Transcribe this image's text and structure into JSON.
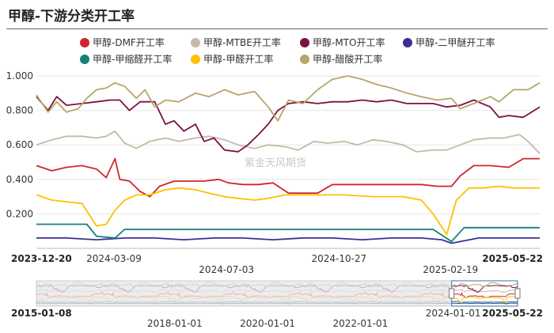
{
  "page": {
    "title": "甲醇-下游分类开工率"
  },
  "watermark": "紫金天风期货",
  "chart_data": {
    "type": "line",
    "ylim": [
      0.0,
      1.0
    ],
    "y_ticks": [
      "1.000",
      "0.800",
      "0.600",
      "0.400",
      "0.200"
    ],
    "y_tick_values": [
      1.0,
      0.8,
      0.6,
      0.4,
      0.2
    ],
    "x_range": [
      "2023-12-20",
      "2025-05-22"
    ],
    "x_ticks": [
      {
        "label": "2023-12-20",
        "date": "2023-12-20",
        "bold": true,
        "row": 1
      },
      {
        "label": "2024-03-09",
        "date": "2024-03-09",
        "bold": false,
        "row": 1
      },
      {
        "label": "2024-07-03",
        "date": "2024-07-03",
        "bold": false,
        "row": 2
      },
      {
        "label": "2024-10-27",
        "date": "2024-10-27",
        "bold": false,
        "row": 1
      },
      {
        "label": "2025-02-19",
        "date": "2025-02-19",
        "bold": false,
        "row": 2
      },
      {
        "label": "2025-05-22",
        "date": "2025-05-22",
        "bold": true,
        "row": 1
      }
    ],
    "legend_position": "top",
    "grid": true,
    "series": [
      {
        "name": "甲醇-DMF开工率",
        "color": "#d0262b",
        "x": [
          "2023-12-20",
          "2024-01-05",
          "2024-01-20",
          "2024-02-05",
          "2024-02-20",
          "2024-03-01",
          "2024-03-10",
          "2024-03-15",
          "2024-03-25",
          "2024-04-05",
          "2024-04-15",
          "2024-04-25",
          "2024-05-10",
          "2024-05-25",
          "2024-06-10",
          "2024-06-25",
          "2024-07-05",
          "2024-07-20",
          "2024-08-05",
          "2024-08-20",
          "2024-09-05",
          "2024-09-20",
          "2024-10-05",
          "2024-10-20",
          "2024-11-05",
          "2024-11-20",
          "2024-12-05",
          "2024-12-20",
          "2025-01-05",
          "2025-01-20",
          "2025-02-05",
          "2025-02-20",
          "2025-03-01",
          "2025-03-15",
          "2025-04-01",
          "2025-04-20",
          "2025-05-05",
          "2025-05-22"
        ],
        "y": [
          0.48,
          0.45,
          0.47,
          0.48,
          0.46,
          0.41,
          0.52,
          0.4,
          0.39,
          0.33,
          0.3,
          0.36,
          0.39,
          0.39,
          0.39,
          0.4,
          0.38,
          0.37,
          0.37,
          0.38,
          0.32,
          0.32,
          0.32,
          0.37,
          0.37,
          0.37,
          0.37,
          0.37,
          0.37,
          0.37,
          0.36,
          0.36,
          0.42,
          0.48,
          0.48,
          0.47,
          0.52,
          0.52
        ]
      },
      {
        "name": "甲醇-MTBE开工率",
        "color": "#c6b9a6",
        "x": [
          "2023-12-20",
          "2024-01-05",
          "2024-01-20",
          "2024-02-05",
          "2024-02-20",
          "2024-03-01",
          "2024-03-10",
          "2024-03-20",
          "2024-04-01",
          "2024-04-15",
          "2024-05-01",
          "2024-05-15",
          "2024-06-01",
          "2024-06-15",
          "2024-07-01",
          "2024-07-15",
          "2024-08-01",
          "2024-08-15",
          "2024-09-01",
          "2024-09-15",
          "2024-10-01",
          "2024-10-15",
          "2024-11-01",
          "2024-11-15",
          "2024-12-01",
          "2024-12-15",
          "2025-01-01",
          "2025-01-15",
          "2025-02-01",
          "2025-02-15",
          "2025-03-01",
          "2025-03-15",
          "2025-04-01",
          "2025-04-15",
          "2025-05-01",
          "2025-05-10",
          "2025-05-22"
        ],
        "y": [
          0.6,
          0.63,
          0.65,
          0.65,
          0.64,
          0.65,
          0.68,
          0.61,
          0.58,
          0.62,
          0.64,
          0.62,
          0.64,
          0.65,
          0.63,
          0.6,
          0.58,
          0.6,
          0.59,
          0.57,
          0.62,
          0.61,
          0.62,
          0.6,
          0.63,
          0.62,
          0.6,
          0.56,
          0.57,
          0.57,
          0.6,
          0.63,
          0.64,
          0.64,
          0.66,
          0.62,
          0.55
        ]
      },
      {
        "name": "甲醇-MTO开工率",
        "color": "#7c1143",
        "x": [
          "2023-12-20",
          "2024-01-01",
          "2024-01-10",
          "2024-01-20",
          "2024-02-05",
          "2024-02-20",
          "2024-03-05",
          "2024-03-15",
          "2024-03-25",
          "2024-04-05",
          "2024-04-20",
          "2024-05-01",
          "2024-05-10",
          "2024-05-20",
          "2024-06-01",
          "2024-06-10",
          "2024-06-20",
          "2024-07-01",
          "2024-07-15",
          "2024-07-25",
          "2024-08-05",
          "2024-08-15",
          "2024-08-25",
          "2024-09-05",
          "2024-09-20",
          "2024-10-05",
          "2024-10-20",
          "2024-11-05",
          "2024-11-20",
          "2024-12-05",
          "2024-12-20",
          "2025-01-05",
          "2025-01-20",
          "2025-02-01",
          "2025-02-15",
          "2025-03-01",
          "2025-03-15",
          "2025-04-01",
          "2025-04-10",
          "2025-04-20",
          "2025-05-05",
          "2025-05-22"
        ],
        "y": [
          0.88,
          0.8,
          0.88,
          0.83,
          0.84,
          0.85,
          0.86,
          0.86,
          0.8,
          0.85,
          0.85,
          0.72,
          0.74,
          0.68,
          0.72,
          0.62,
          0.64,
          0.57,
          0.56,
          0.6,
          0.66,
          0.72,
          0.8,
          0.84,
          0.85,
          0.84,
          0.85,
          0.85,
          0.86,
          0.85,
          0.86,
          0.84,
          0.84,
          0.84,
          0.82,
          0.83,
          0.86,
          0.82,
          0.76,
          0.77,
          0.76,
          0.82
        ]
      },
      {
        "name": "甲醇-二甲醚开工率",
        "color": "#3b2f96",
        "x": [
          "2023-12-20",
          "2024-01-20",
          "2024-02-20",
          "2024-03-20",
          "2024-04-20",
          "2024-05-20",
          "2024-06-20",
          "2024-07-20",
          "2024-08-20",
          "2024-09-20",
          "2024-10-20",
          "2024-11-20",
          "2024-12-20",
          "2025-01-20",
          "2025-02-10",
          "2025-02-20",
          "2025-03-20",
          "2025-04-20",
          "2025-05-22"
        ],
        "y": [
          0.06,
          0.06,
          0.05,
          0.06,
          0.06,
          0.05,
          0.06,
          0.06,
          0.05,
          0.06,
          0.06,
          0.05,
          0.06,
          0.06,
          0.05,
          0.03,
          0.06,
          0.06,
          0.06
        ]
      },
      {
        "name": "甲醇-甲缩醛开工率",
        "color": "#13807a",
        "x": [
          "2023-12-20",
          "2024-01-20",
          "2024-02-10",
          "2024-02-20",
          "2024-03-10",
          "2024-03-20",
          "2024-05-01",
          "2024-07-01",
          "2024-09-01",
          "2024-11-01",
          "2025-01-01",
          "2025-02-01",
          "2025-02-20",
          "2025-03-05",
          "2025-04-01",
          "2025-05-22"
        ],
        "y": [
          0.14,
          0.14,
          0.14,
          0.07,
          0.06,
          0.11,
          0.11,
          0.11,
          0.11,
          0.11,
          0.11,
          0.11,
          0.04,
          0.12,
          0.12,
          0.12
        ]
      },
      {
        "name": "甲醇-甲醛开工率",
        "color": "#ffc000",
        "x": [
          "2023-12-20",
          "2024-01-05",
          "2024-01-20",
          "2024-02-05",
          "2024-02-20",
          "2024-03-01",
          "2024-03-10",
          "2024-03-20",
          "2024-04-01",
          "2024-04-15",
          "2024-05-01",
          "2024-05-15",
          "2024-06-01",
          "2024-06-15",
          "2024-07-01",
          "2024-07-15",
          "2024-08-01",
          "2024-08-15",
          "2024-09-01",
          "2024-10-01",
          "2024-11-01",
          "2024-12-01",
          "2025-01-01",
          "2025-01-20",
          "2025-02-01",
          "2025-02-15",
          "2025-02-25",
          "2025-03-10",
          "2025-03-25",
          "2025-04-10",
          "2025-04-25",
          "2025-05-10",
          "2025-05-22"
        ],
        "y": [
          0.31,
          0.28,
          0.27,
          0.26,
          0.13,
          0.14,
          0.22,
          0.28,
          0.31,
          0.31,
          0.34,
          0.35,
          0.34,
          0.32,
          0.3,
          0.29,
          0.28,
          0.29,
          0.31,
          0.31,
          0.31,
          0.3,
          0.3,
          0.28,
          0.2,
          0.08,
          0.28,
          0.35,
          0.35,
          0.36,
          0.35,
          0.35,
          0.35
        ]
      },
      {
        "name": "甲醇-醋酸开工率",
        "color": "#b5a66a",
        "x": [
          "2023-12-20",
          "2024-01-01",
          "2024-01-10",
          "2024-01-20",
          "2024-02-01",
          "2024-02-10",
          "2024-02-20",
          "2024-03-01",
          "2024-03-10",
          "2024-03-20",
          "2024-04-01",
          "2024-04-10",
          "2024-04-20",
          "2024-05-01",
          "2024-05-15",
          "2024-06-01",
          "2024-06-15",
          "2024-07-01",
          "2024-07-15",
          "2024-08-01",
          "2024-08-15",
          "2024-08-25",
          "2024-09-05",
          "2024-09-20",
          "2024-10-05",
          "2024-10-20",
          "2024-11-05",
          "2024-11-20",
          "2024-12-05",
          "2024-12-20",
          "2025-01-05",
          "2025-01-20",
          "2025-02-05",
          "2025-02-20",
          "2025-03-01",
          "2025-03-15",
          "2025-04-01",
          "2025-04-10",
          "2025-04-25",
          "2025-05-10",
          "2025-05-22"
        ],
        "y": [
          0.89,
          0.79,
          0.85,
          0.79,
          0.81,
          0.87,
          0.92,
          0.93,
          0.96,
          0.94,
          0.87,
          0.92,
          0.82,
          0.86,
          0.85,
          0.9,
          0.88,
          0.92,
          0.89,
          0.91,
          0.82,
          0.74,
          0.86,
          0.84,
          0.92,
          0.98,
          1.0,
          0.98,
          0.95,
          0.93,
          0.9,
          0.88,
          0.86,
          0.87,
          0.81,
          0.84,
          0.88,
          0.85,
          0.92,
          0.92,
          0.96
        ]
      }
    ]
  },
  "navigator": {
    "start_label": "2015-01-08",
    "end_label": "2025-05-22",
    "range_start": "2015-01-08",
    "range_end": "2025-05-22",
    "window_start": "2023-12-20",
    "window_end": "2025-05-22",
    "ticks": [
      {
        "label": "2018-01-01",
        "date": "2018-01-01"
      },
      {
        "label": "2020-01-01",
        "date": "2020-01-01"
      },
      {
        "label": "2022-01-01",
        "date": "2022-01-01"
      },
      {
        "label": "2024-01-01",
        "date": "2024-01-01"
      }
    ]
  }
}
